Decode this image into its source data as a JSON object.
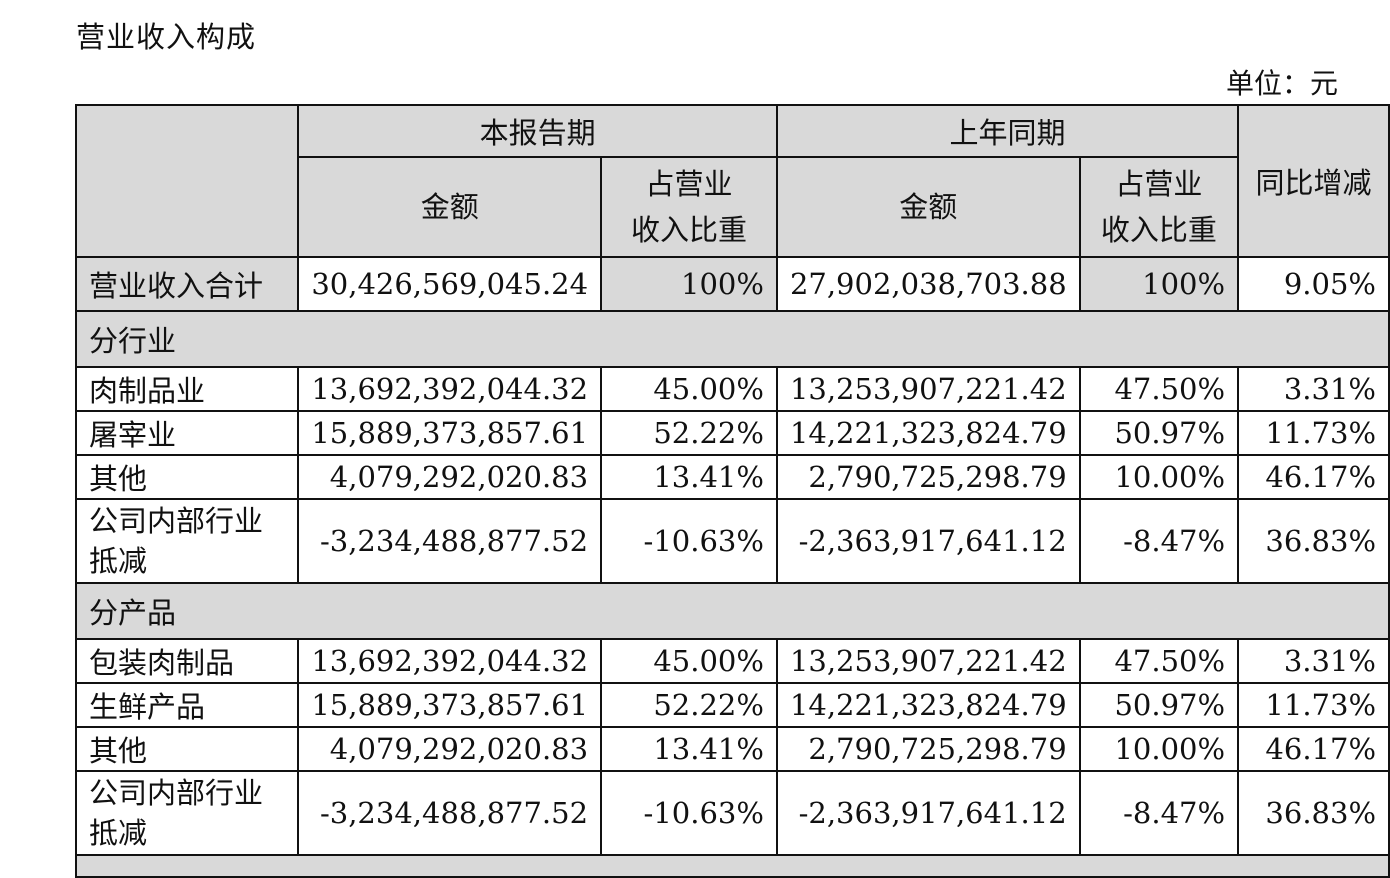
{
  "title": "营业收入构成",
  "unit": "单位：元",
  "header": {
    "current_period": "本报告期",
    "prior_period": "上年同期",
    "yoy": "同比增减",
    "amount": "金额",
    "share_line1": "占营业",
    "share_line2": "收入比重"
  },
  "total": {
    "label": "营业收入合计",
    "cur_amount": "30,426,569,045.24",
    "cur_share": "100%",
    "prev_amount": "27,902,038,703.88",
    "prev_share": "100%",
    "yoy": "9.05%"
  },
  "sections": [
    {
      "title": "分行业",
      "rows": [
        {
          "label": "肉制品业",
          "cur_amount": "13,692,392,044.32",
          "cur_share": "45.00%",
          "prev_amount": "13,253,907,221.42",
          "prev_share": "47.50%",
          "yoy": "3.31%"
        },
        {
          "label": "屠宰业",
          "cur_amount": "15,889,373,857.61",
          "cur_share": "52.22%",
          "prev_amount": "14,221,323,824.79",
          "prev_share": "50.97%",
          "yoy": "11.73%"
        },
        {
          "label": "其他",
          "cur_amount": "4,079,292,020.83",
          "cur_share": "13.41%",
          "prev_amount": "2,790,725,298.79",
          "prev_share": "10.00%",
          "yoy": "46.17%"
        },
        {
          "label_line1": "公司内部行业",
          "label_line2": "抵减",
          "cur_amount": "-3,234,488,877.52",
          "cur_share": "-10.63%",
          "prev_amount": "-2,363,917,641.12",
          "prev_share": "-8.47%",
          "yoy": "36.83%"
        }
      ]
    },
    {
      "title": "分产品",
      "rows": [
        {
          "label": "包装肉制品",
          "cur_amount": "13,692,392,044.32",
          "cur_share": "45.00%",
          "prev_amount": "13,253,907,221.42",
          "prev_share": "47.50%",
          "yoy": "3.31%"
        },
        {
          "label": "生鲜产品",
          "cur_amount": "15,889,373,857.61",
          "cur_share": "52.22%",
          "prev_amount": "14,221,323,824.79",
          "prev_share": "50.97%",
          "yoy": "11.73%"
        },
        {
          "label": "其他",
          "cur_amount": "4,079,292,020.83",
          "cur_share": "13.41%",
          "prev_amount": "2,790,725,298.79",
          "prev_share": "10.00%",
          "yoy": "46.17%"
        },
        {
          "label_line1": "公司内部行业",
          "label_line2": "抵减",
          "cur_amount": "-3,234,488,877.52",
          "cur_share": "-10.63%",
          "prev_amount": "-2,363,917,641.12",
          "prev_share": "-8.47%",
          "yoy": "36.83%"
        }
      ]
    }
  ],
  "colors": {
    "header_fill": "#d9d9d9",
    "border": "#111111"
  }
}
